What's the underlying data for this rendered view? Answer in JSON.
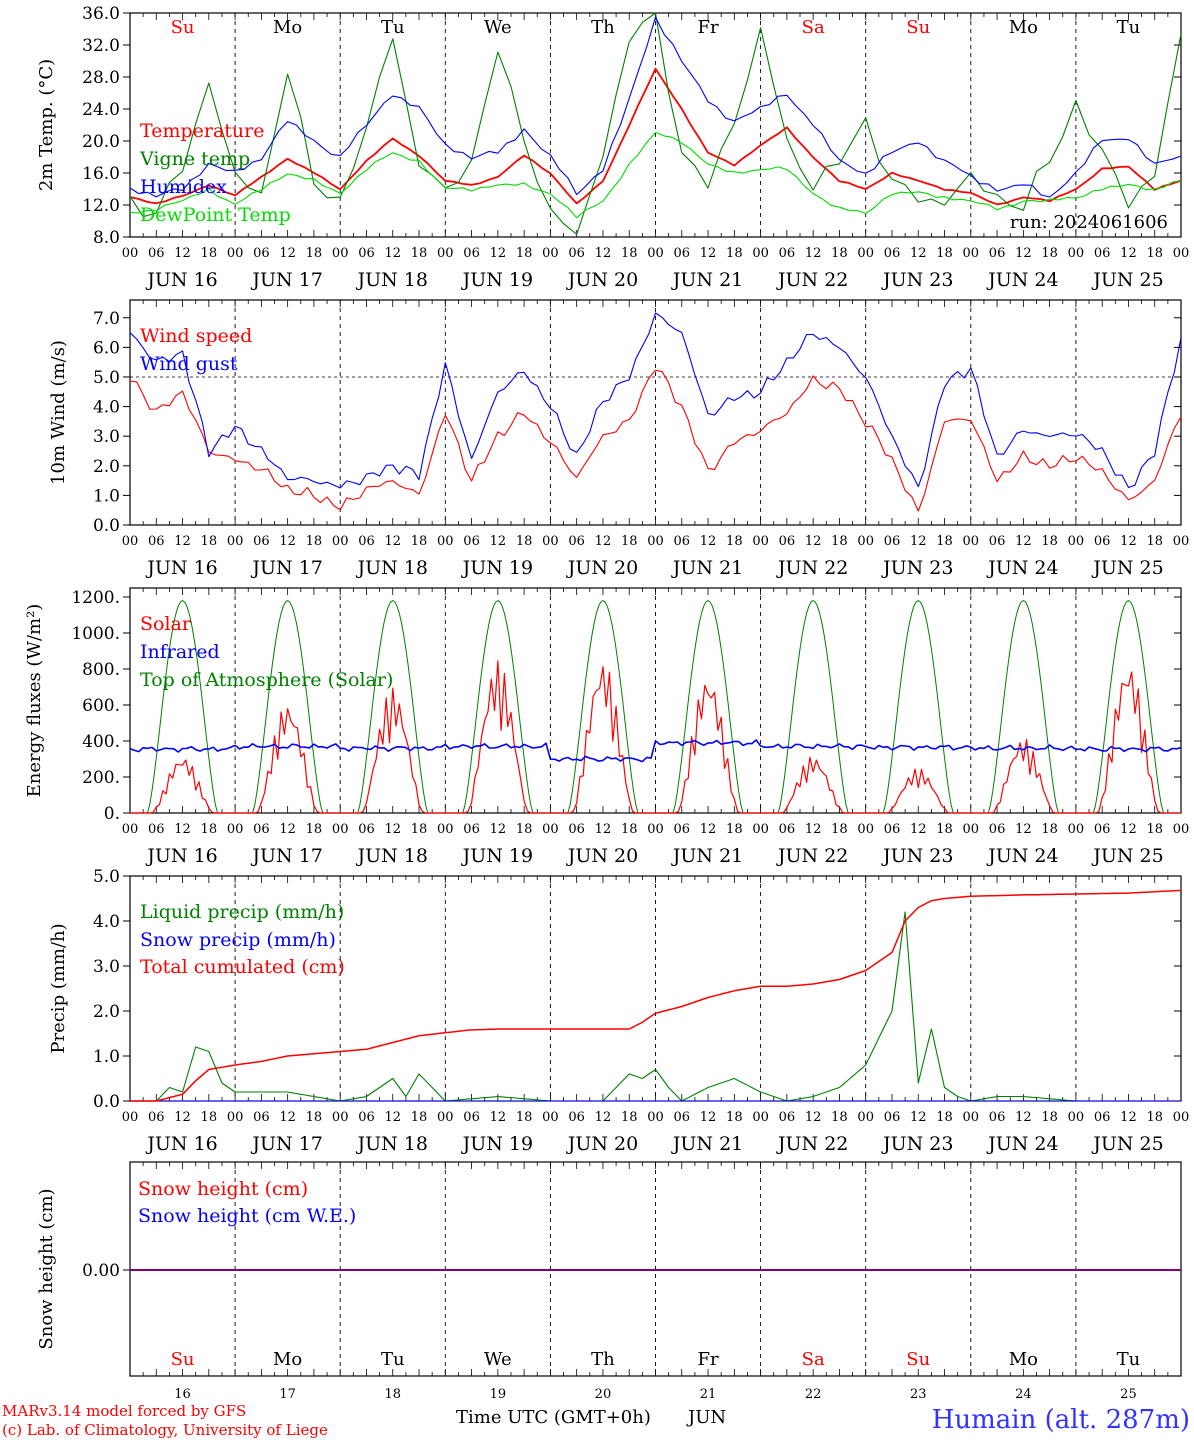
{
  "chart_data": [
    {
      "type": "line",
      "ylabel": "2m Temp. (°C)",
      "ylim": [
        8,
        36
      ],
      "yticks": [
        "8.0",
        "12.0",
        "16.0",
        "20.0",
        "24.0",
        "28.0",
        "32.0",
        "36.0"
      ],
      "run": "run: 2024061606",
      "series": [
        {
          "name": "Temperature",
          "color": "#ff0000",
          "x": [
            0,
            6,
            12,
            18,
            24,
            30,
            36,
            42,
            48,
            54,
            60,
            66,
            72,
            78,
            84,
            90,
            96,
            102,
            108,
            114,
            120,
            126,
            132,
            138,
            144,
            150,
            156,
            162,
            168,
            174,
            180,
            186,
            192,
            198,
            204,
            210,
            216,
            222,
            228,
            234,
            240
          ],
          "values": [
            13.0,
            12.2,
            13.1,
            14.5,
            13.2,
            15.5,
            17.8,
            16.0,
            14.0,
            17.5,
            20.3,
            18.2,
            15.0,
            14.5,
            15.5,
            18.2,
            16.0,
            12.1,
            15.0,
            22.0,
            29.0,
            24.0,
            18.5,
            17.0,
            19.5,
            21.6,
            18.0,
            15.0,
            14.0,
            16.0,
            15.0,
            14.0,
            13.5,
            12.0,
            13.0,
            12.5,
            14.0,
            16.5,
            16.8,
            14.0,
            15.0
          ]
        },
        {
          "name": "Vigne temp",
          "color": "#008000",
          "x": [
            0,
            6,
            12,
            18,
            24,
            30,
            36,
            42,
            48,
            54,
            60,
            66,
            72,
            78,
            84,
            90,
            96,
            102,
            108,
            114,
            120,
            126,
            132,
            138,
            144,
            150,
            156,
            162,
            168,
            174,
            180,
            186,
            192,
            198,
            204,
            210,
            216,
            222,
            228,
            234,
            240
          ],
          "values": [
            12.0,
            11.0,
            17.0,
            27.0,
            16.0,
            13.0,
            29.0,
            15.0,
            12.0,
            22.0,
            33.0,
            17.0,
            14.0,
            17.0,
            32.0,
            20.0,
            11.0,
            8.5,
            18.0,
            33.0,
            36.0,
            18.0,
            15.0,
            22.0,
            34.0,
            20.0,
            14.0,
            18.0,
            22.0,
            15.0,
            13.0,
            12.0,
            16.0,
            12.5,
            12.0,
            18.0,
            24.0,
            19.0,
            12.0,
            16.0,
            33.0
          ]
        },
        {
          "name": "Humidex",
          "color": "#0000ff",
          "x": [
            0,
            6,
            12,
            18,
            24,
            30,
            36,
            42,
            48,
            54,
            60,
            66,
            72,
            78,
            84,
            90,
            96,
            102,
            108,
            114,
            120,
            126,
            132,
            138,
            144,
            150,
            156,
            162,
            168,
            174,
            180,
            186,
            192,
            198,
            204,
            210,
            216,
            222,
            228,
            234,
            240
          ],
          "values": [
            14.0,
            13.0,
            14.2,
            17.0,
            16.0,
            18.0,
            22.5,
            20.0,
            18.0,
            22.0,
            26.0,
            24.0,
            19.5,
            18.0,
            18.5,
            21.5,
            18.0,
            13.5,
            16.5,
            25.0,
            35.5,
            30.0,
            25.0,
            22.5,
            24.0,
            26.0,
            22.0,
            17.5,
            16.0,
            18.5,
            20.0,
            17.5,
            15.5,
            14.0,
            14.5,
            13.0,
            16.0,
            20.0,
            20.5,
            17.0,
            18.0
          ]
        },
        {
          "name": "DewPoint Temp",
          "color": "#00dd00",
          "x": [
            0,
            6,
            12,
            18,
            24,
            30,
            36,
            42,
            48,
            54,
            60,
            66,
            72,
            78,
            84,
            90,
            96,
            102,
            108,
            114,
            120,
            126,
            132,
            138,
            144,
            150,
            156,
            162,
            168,
            174,
            180,
            186,
            192,
            198,
            204,
            210,
            216,
            222,
            228,
            234,
            240
          ],
          "values": [
            11.0,
            11.5,
            12.5,
            14.0,
            12.0,
            14.0,
            16.0,
            15.0,
            13.5,
            16.5,
            18.5,
            17.5,
            14.0,
            14.0,
            14.5,
            14.5,
            13.5,
            10.5,
            12.5,
            17.0,
            21.0,
            20.0,
            17.0,
            16.0,
            16.5,
            16.5,
            13.5,
            11.5,
            11.0,
            13.5,
            13.5,
            13.0,
            12.5,
            11.5,
            12.5,
            12.5,
            13.0,
            14.0,
            14.5,
            14.0,
            15.0
          ]
        }
      ]
    },
    {
      "type": "line",
      "ylabel": "10m Wind (m/s)",
      "ylim": [
        0,
        7.6
      ],
      "yticks": [
        "0.0",
        "1.0",
        "2.0",
        "3.0",
        "4.0",
        "5.0",
        "6.0",
        "7.0"
      ],
      "refline": 5.0,
      "series": [
        {
          "name": "Wind speed",
          "color": "#ff0000",
          "x": [
            0,
            6,
            12,
            18,
            24,
            30,
            36,
            42,
            48,
            54,
            60,
            66,
            72,
            78,
            84,
            90,
            96,
            102,
            108,
            114,
            120,
            126,
            132,
            138,
            144,
            150,
            156,
            162,
            168,
            174,
            180,
            186,
            192,
            198,
            204,
            210,
            216,
            222,
            228,
            234,
            240
          ],
          "values": [
            5.0,
            3.8,
            4.5,
            2.5,
            2.2,
            1.9,
            1.2,
            1.0,
            0.6,
            1.2,
            1.5,
            1.0,
            3.8,
            1.5,
            3.0,
            3.8,
            2.8,
            1.6,
            3.0,
            3.5,
            5.4,
            4.0,
            1.8,
            2.8,
            3.2,
            3.8,
            4.9,
            4.6,
            3.5,
            2.2,
            0.4,
            3.5,
            3.6,
            1.5,
            2.3,
            2.0,
            2.3,
            1.8,
            0.8,
            1.5,
            3.8
          ]
        },
        {
          "name": "Wind gust",
          "color": "#0000ff",
          "x": [
            0,
            6,
            12,
            18,
            24,
            30,
            36,
            42,
            48,
            54,
            60,
            66,
            72,
            78,
            84,
            90,
            96,
            102,
            108,
            114,
            120,
            126,
            132,
            138,
            144,
            150,
            156,
            162,
            168,
            174,
            180,
            186,
            192,
            198,
            204,
            210,
            216,
            222,
            228,
            234,
            240
          ],
          "values": [
            6.5,
            5.5,
            5.8,
            2.5,
            3.3,
            2.5,
            1.6,
            1.5,
            1.3,
            1.6,
            2.0,
            1.7,
            5.4,
            2.2,
            4.5,
            5.2,
            4.0,
            2.3,
            4.2,
            5.0,
            7.1,
            6.5,
            3.7,
            4.3,
            4.5,
            5.5,
            6.5,
            6.0,
            5.0,
            3.0,
            1.2,
            4.8,
            5.3,
            2.3,
            3.2,
            3.0,
            3.1,
            2.5,
            1.2,
            2.5,
            6.3
          ]
        }
      ]
    },
    {
      "type": "line",
      "ylabel": "Energy fluxes (W/m²)",
      "ylim": [
        0,
        1250
      ],
      "yticks": [
        "0.",
        "200.",
        "400.",
        "600.",
        "800.",
        "1000.",
        "1200."
      ],
      "series": [
        {
          "name": "Solar",
          "color": "#ff0000",
          "dailyPeaks": [
            320,
            620,
            700,
            850,
            860,
            780,
            320,
            250,
            420,
            850
          ]
        },
        {
          "name": "Infrared",
          "color": "#0000ff",
          "dailyMeans": [
            355,
            370,
            360,
            370,
            300,
            390,
            370,
            365,
            360,
            355
          ]
        },
        {
          "name": "Top of Atmosphere (Solar)",
          "color": "#008000",
          "dailyPeaks": [
            1180,
            1180,
            1180,
            1180,
            1180,
            1180,
            1180,
            1180,
            1180,
            1180
          ]
        }
      ]
    },
    {
      "type": "line",
      "ylabel": "Precip (mm/h)",
      "ylim": [
        0,
        5
      ],
      "yticks": [
        "0.0",
        "1.0",
        "2.0",
        "3.0",
        "4.0",
        "5.0"
      ],
      "series": [
        {
          "name": "Liquid precip (mm/h)",
          "color": "#008000",
          "x": [
            0,
            6,
            9,
            12,
            15,
            18,
            21,
            24,
            36,
            42,
            48,
            54,
            60,
            63,
            66,
            72,
            84,
            96,
            108,
            114,
            117,
            120,
            123,
            126,
            132,
            138,
            144,
            150,
            156,
            162,
            168,
            174,
            177,
            180,
            183,
            186,
            189,
            192,
            198,
            204,
            216,
            240
          ],
          "values": [
            0,
            0,
            0.3,
            0.2,
            1.2,
            1.1,
            0.4,
            0.2,
            0.2,
            0.1,
            0,
            0.1,
            0.5,
            0.1,
            0.6,
            0,
            0.1,
            0,
            0,
            0.6,
            0.5,
            0.7,
            0.3,
            0,
            0.3,
            0.5,
            0.2,
            0,
            0.1,
            0.3,
            0.8,
            2.0,
            4.2,
            0.4,
            1.6,
            0.3,
            0.1,
            0,
            0.1,
            0.1,
            0,
            0
          ]
        },
        {
          "name": "Snow precip (mm/h)",
          "color": "#0000ff",
          "x": [
            0,
            240
          ],
          "values": [
            0,
            0
          ]
        },
        {
          "name": "Total cumulated (cm)",
          "color": "#ff0000",
          "x": [
            0,
            6,
            12,
            15,
            18,
            24,
            30,
            36,
            42,
            48,
            54,
            60,
            66,
            72,
            78,
            84,
            96,
            108,
            114,
            117,
            120,
            126,
            132,
            138,
            144,
            150,
            156,
            162,
            168,
            174,
            177,
            180,
            183,
            186,
            192,
            204,
            216,
            228,
            240
          ],
          "values": [
            0,
            0,
            0.15,
            0.45,
            0.7,
            0.8,
            0.88,
            1.0,
            1.05,
            1.1,
            1.15,
            1.3,
            1.45,
            1.52,
            1.58,
            1.6,
            1.6,
            1.6,
            1.6,
            1.75,
            1.95,
            2.1,
            2.3,
            2.45,
            2.55,
            2.55,
            2.6,
            2.7,
            2.9,
            3.3,
            4.0,
            4.3,
            4.45,
            4.5,
            4.55,
            4.58,
            4.6,
            4.62,
            4.68
          ]
        }
      ]
    },
    {
      "type": "line",
      "ylabel": "Snow height (cm)",
      "yticks": [
        "0.00"
      ],
      "series": [
        {
          "name": "Snow height (cm)",
          "color": "#ff0000",
          "x": [
            0,
            240
          ],
          "values": [
            0,
            0
          ]
        },
        {
          "name": "Snow height (cm W.E.)",
          "color": "#0000ff",
          "x": [
            0,
            240
          ],
          "values": [
            0,
            0
          ]
        }
      ]
    }
  ],
  "days": {
    "weekday_top": [
      "Su",
      "Mo",
      "Tu",
      "We",
      "Th",
      "Fr",
      "Sa",
      "Su",
      "Mo",
      "Tu"
    ],
    "weekday_bottom": [
      "Su",
      "Mo",
      "Tu",
      "We",
      "Th",
      "Fr",
      "Sa",
      "Su",
      "Mo",
      "Tu"
    ],
    "weekend_color": "#ff0000",
    "weekend_index": [
      0,
      6,
      7
    ],
    "hour_labels": [
      "00",
      "06",
      "12",
      "18"
    ],
    "end_hour": "00",
    "date_labels": [
      "JUN 16",
      "JUN 17",
      "JUN 18",
      "JUN 19",
      "JUN 20",
      "JUN 21",
      "JUN 22",
      "JUN 23",
      "JUN 24",
      "JUN 25"
    ],
    "day_numbers": [
      "16",
      "17",
      "18",
      "19",
      "20",
      "21",
      "22",
      "23",
      "24",
      "25"
    ]
  },
  "footer": {
    "credit1": "MARv3.14 model forced by GFS",
    "credit2": "(c) Lab. of Climatology, University of Liege",
    "xlabel": "Time UTC (GMT+0h)",
    "month": "JUN",
    "station": "Humain (alt. 287m)"
  }
}
